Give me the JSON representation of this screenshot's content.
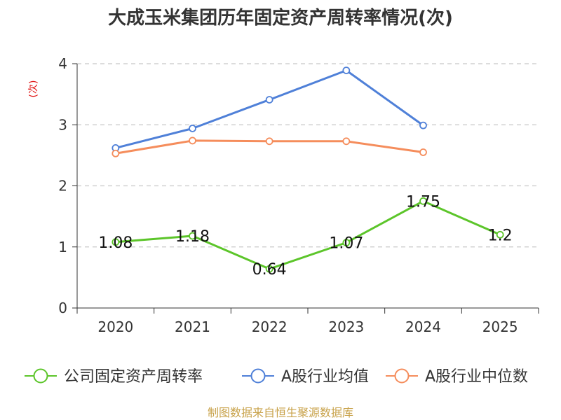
{
  "chart_data": {
    "type": "line",
    "title": "大成玉米集团历年固定资产周转率情况(次)",
    "ylabel": "(次)",
    "xlabel": "",
    "categories": [
      "2020",
      "2021",
      "2022",
      "2023",
      "2024",
      "2025"
    ],
    "ylim": [
      0,
      4
    ],
    "yticks": [
      0,
      1,
      2,
      3,
      4
    ],
    "grid": true,
    "legend_position": "bottom",
    "series": [
      {
        "name": "公司固定资产周转率",
        "color": "#5cc52a",
        "values": [
          1.08,
          1.18,
          0.64,
          1.07,
          1.75,
          1.2
        ],
        "labels": [
          "1.08",
          "1.18",
          "0.64",
          "1.07",
          "1.75",
          "1.2"
        ]
      },
      {
        "name": "A股行业均值",
        "color": "#4f80d8",
        "values": [
          2.62,
          2.94,
          3.41,
          3.89,
          2.99,
          null
        ]
      },
      {
        "name": "A股行业中位数",
        "color": "#f58d5c",
        "values": [
          2.53,
          2.74,
          2.73,
          2.73,
          2.55,
          null
        ]
      }
    ]
  },
  "source": "制图数据来自恒生聚源数据库"
}
